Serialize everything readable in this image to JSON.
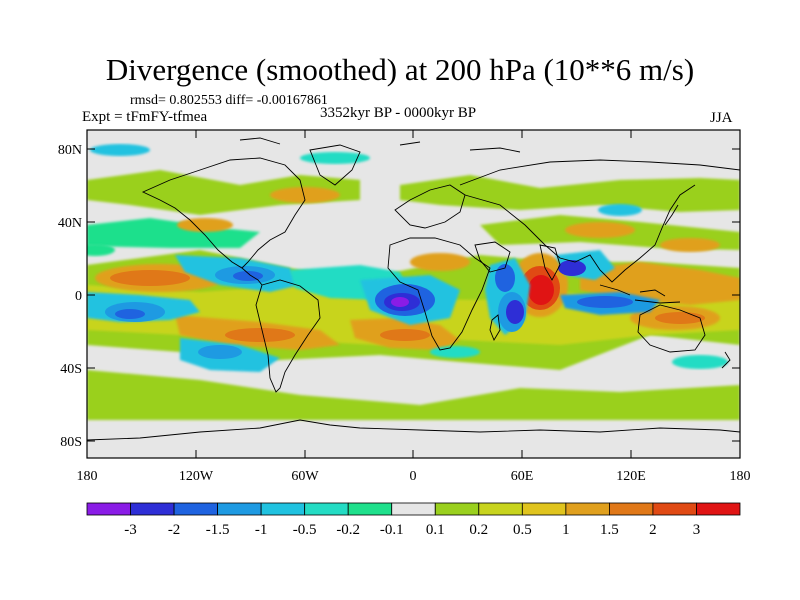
{
  "title": "Divergence (smoothed) at 200 hPa (10**6 m/s)",
  "stats": "rmsd= 0.802553 diff= -0.00167861",
  "experiment": "Expt = tFmFY-tfmea",
  "period": "3352kyr BP - 0000kyr BP",
  "season": "JJA",
  "map": {
    "lat_ticks": [
      "80N",
      "40N",
      "0",
      "40S",
      "80S"
    ],
    "lon_ticks": [
      "180",
      "120W",
      "60W",
      "0",
      "60E",
      "120E",
      "180"
    ]
  },
  "colorbar": {
    "colors": [
      "#8a1ce6",
      "#2e2ed6",
      "#1f63e0",
      "#1e9ae2",
      "#20c2e0",
      "#24dcc4",
      "#1fe08c",
      "#e6e6e6",
      "#9ad01e",
      "#c8d41e",
      "#e0c41e",
      "#e0a01e",
      "#e07818",
      "#e04a14",
      "#e01414"
    ],
    "labels": [
      "-3",
      "-2",
      "-1.5",
      "-1",
      "-0.5",
      "-0.2",
      "-0.1",
      "0.1",
      "0.2",
      "0.5",
      "1",
      "1.5",
      "2",
      "3"
    ]
  },
  "colors": {
    "background": "#e6e6e6",
    "coastline": "#000000"
  }
}
